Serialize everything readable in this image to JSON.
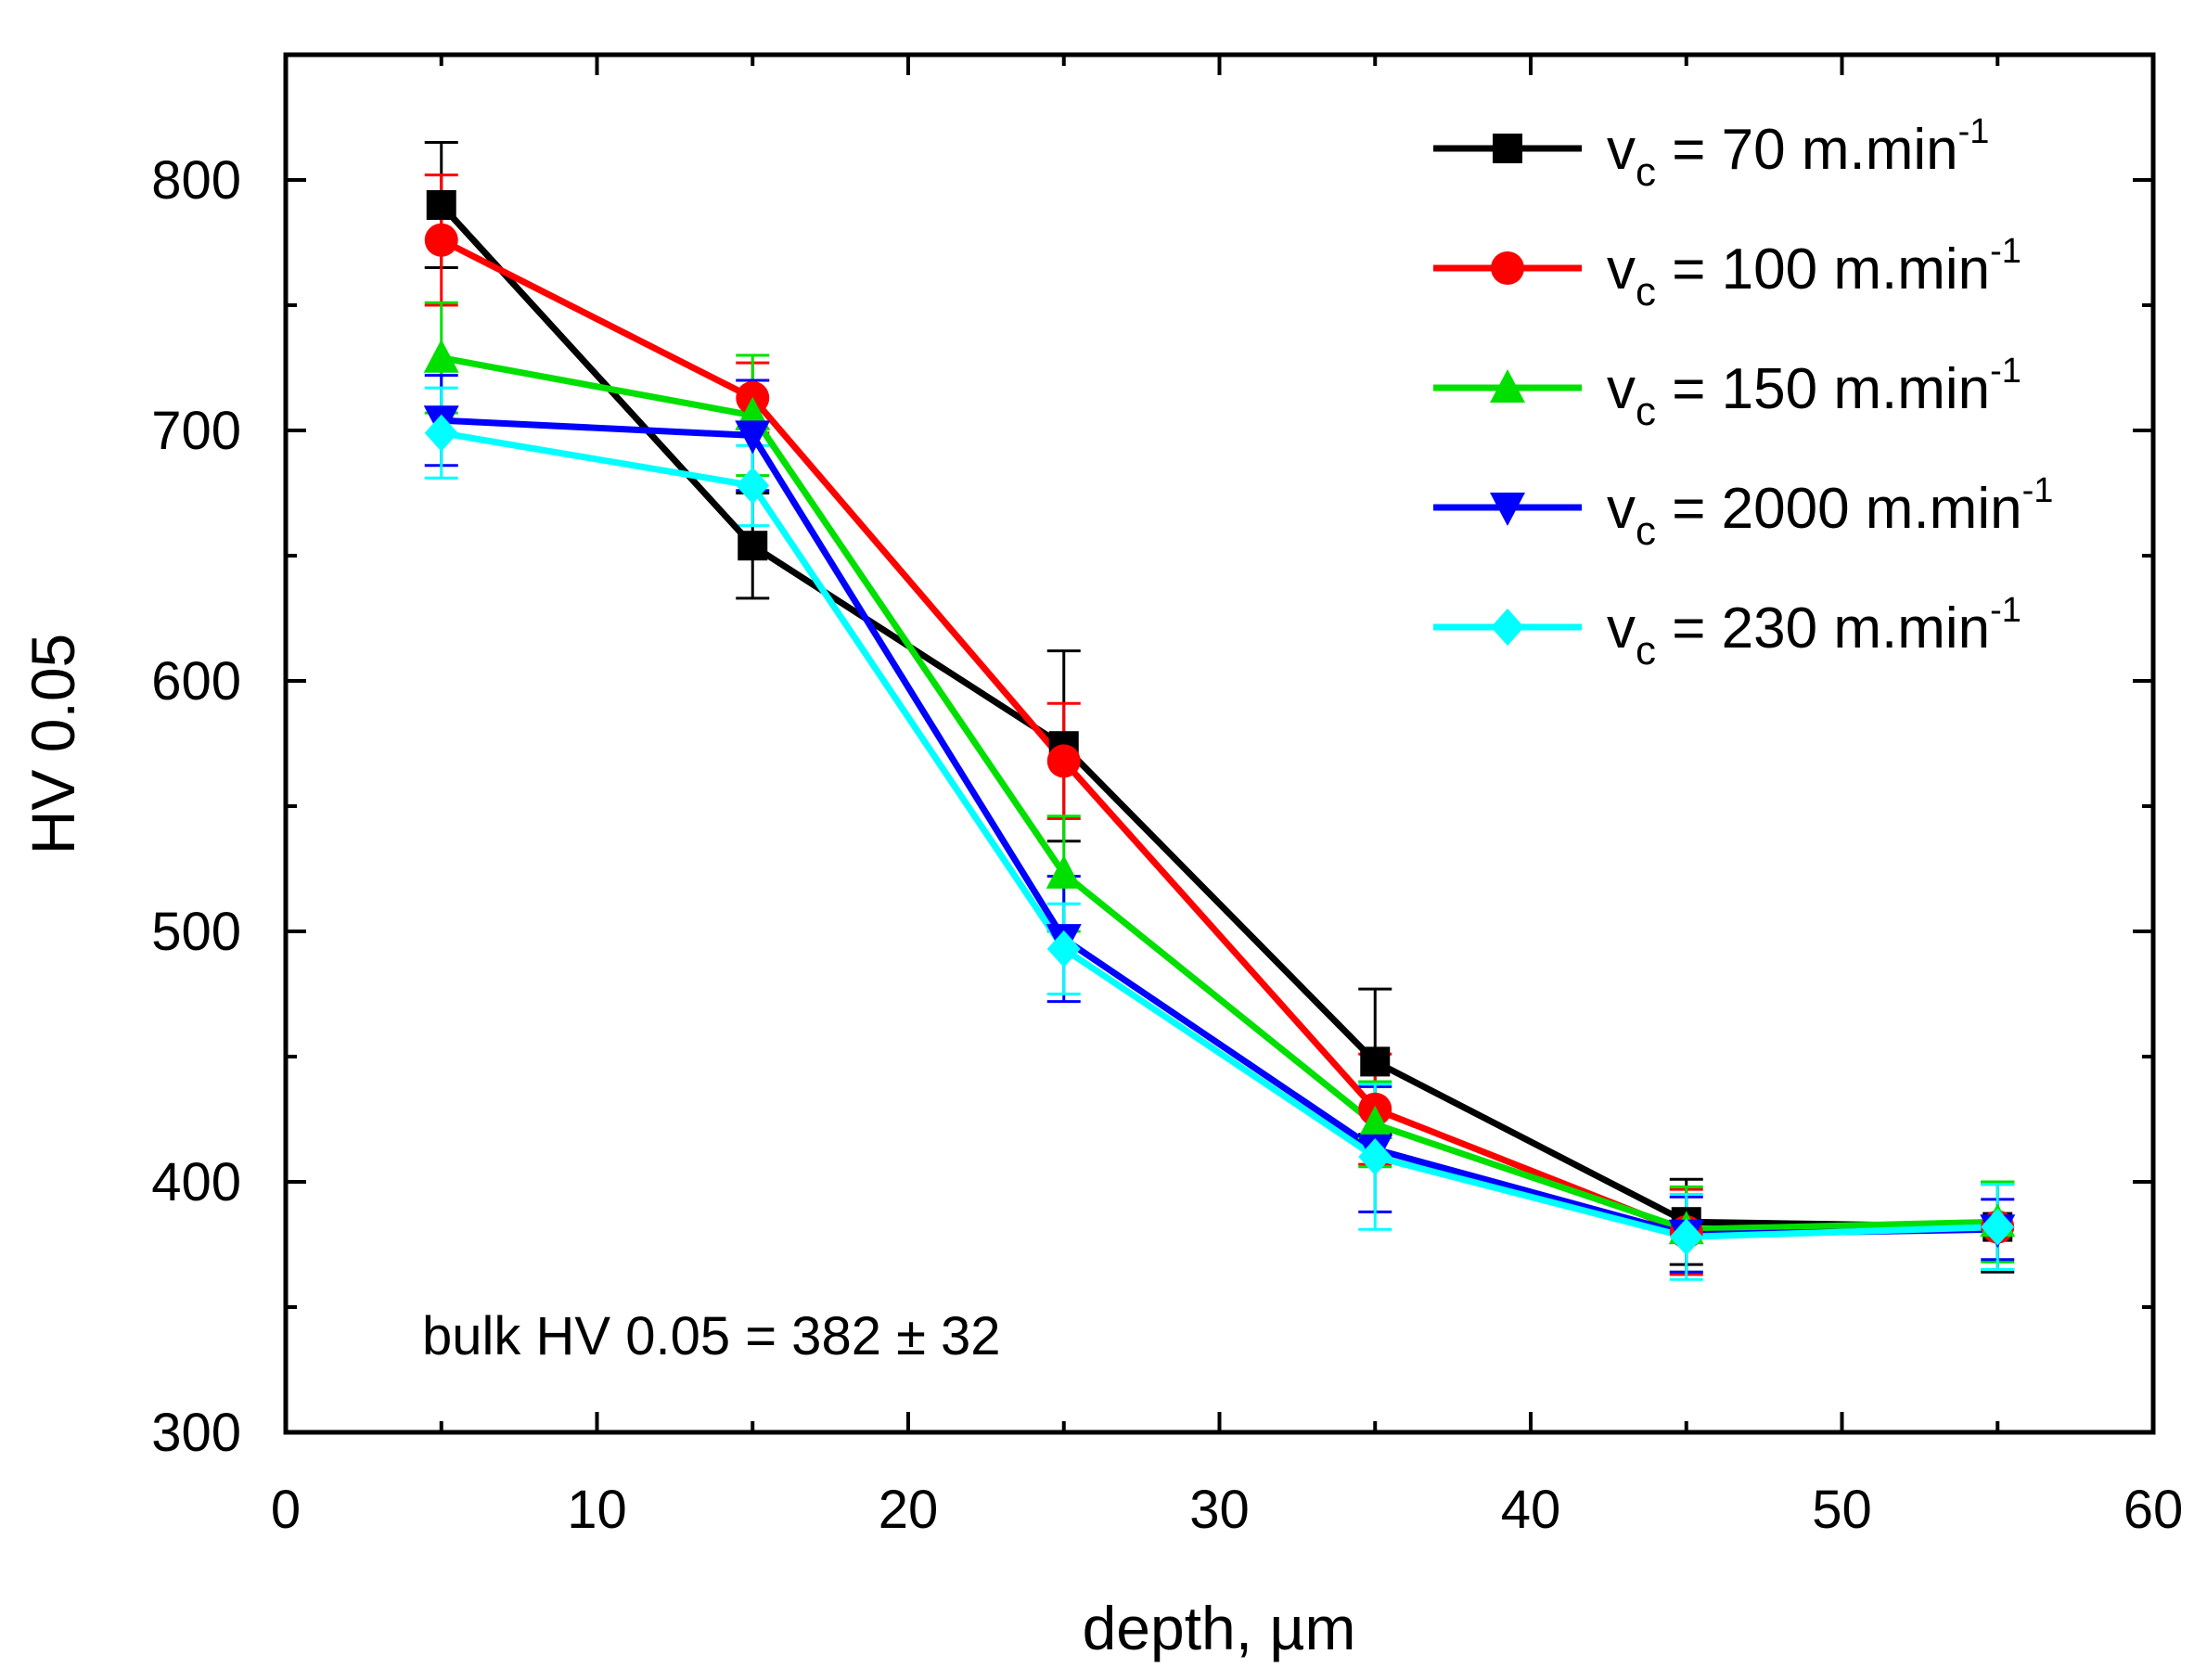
{
  "chart_data": {
    "type": "line",
    "xlabel": "depth, µm",
    "ylabel": "HV 0.05",
    "xlim": [
      0,
      60
    ],
    "ylim": [
      300,
      850
    ],
    "x_ticks": [
      "0",
      "10",
      "20",
      "30",
      "40",
      "50",
      "60"
    ],
    "y_ticks": [
      "300",
      "400",
      "500",
      "600",
      "700",
      "800"
    ],
    "grid": false,
    "legend_position": "top-right",
    "annotation": "bulk HV 0.05 = 382 ± 32",
    "x": [
      5,
      15,
      25,
      35,
      45,
      55
    ],
    "series": [
      {
        "name_main": "v",
        "name_sub": "c",
        "name_rest": " = 70 m.min",
        "name_sup": "-1",
        "marker": "square",
        "color": "#000000",
        "values": [
          790,
          654,
          574,
          448,
          384,
          382
        ],
        "errors": [
          25,
          21,
          38,
          29,
          17,
          18
        ]
      },
      {
        "name_main": "v",
        "name_sub": "c",
        "name_rest": " = 100 m.min",
        "name_sup": "-1",
        "marker": "circle",
        "color": "#ff0000",
        "values": [
          776,
          713,
          568,
          429,
          380,
          382
        ],
        "errors": [
          26,
          14,
          23,
          22,
          17,
          17
        ]
      },
      {
        "name_main": "v",
        "name_sub": "c",
        "name_rest": " = 150 m.min",
        "name_sup": "-1",
        "marker": "triangle-up",
        "color": "#00e000",
        "values": [
          729,
          706,
          523,
          423,
          381,
          384
        ],
        "errors": [
          22,
          24,
          23,
          17,
          17,
          16
        ]
      },
      {
        "name_main": "v",
        "name_sub": "c",
        "name_rest": " = 2000 m.min",
        "name_sup": "-1",
        "marker": "triangle-down",
        "color": "#0000ff",
        "values": [
          704,
          698,
          497,
          413,
          379,
          381
        ],
        "errors": [
          18,
          22,
          25,
          25,
          15,
          12
        ]
      },
      {
        "name_main": "v",
        "name_sub": "c",
        "name_rest": " = 230 m.min",
        "name_sup": "-1",
        "marker": "diamond",
        "color": "#00ffff",
        "values": [
          699,
          678,
          493,
          410,
          378,
          382
        ],
        "errors": [
          18,
          16,
          18,
          29,
          17,
          17
        ]
      }
    ]
  }
}
